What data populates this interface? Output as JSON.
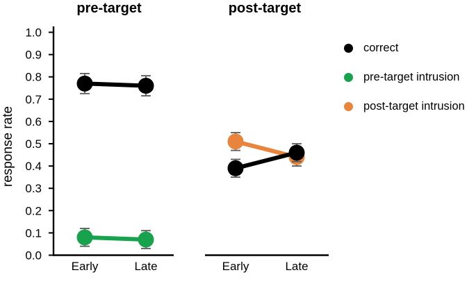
{
  "chart_data": {
    "type": "line",
    "title": "",
    "ylabel": "response rate",
    "xlabel": "",
    "ylim": [
      0.0,
      1.0
    ],
    "yticks": [
      "0.0",
      "0.1",
      "0.2",
      "0.3",
      "0.4",
      "0.5",
      "0.6",
      "0.7",
      "0.8",
      "0.9",
      "1.0"
    ],
    "ytick_values": [
      0.0,
      0.1,
      0.2,
      0.3,
      0.4,
      0.5,
      0.6,
      0.7,
      0.8,
      0.9,
      1.0
    ],
    "categories": [
      "Early",
      "Late"
    ],
    "grid": "off",
    "legend_position": "right",
    "error_bar_color": "#595959",
    "panels": [
      {
        "title": "pre-target",
        "series": [
          {
            "name": "pre-target intrusion",
            "color": "#18a24d",
            "values": [
              0.08,
              0.07
            ],
            "errors": [
              0.04,
              0.04
            ]
          },
          {
            "name": "correct",
            "color": "#000000",
            "values": [
              0.77,
              0.76
            ],
            "errors": [
              0.045,
              0.045
            ]
          }
        ]
      },
      {
        "title": "post-target",
        "series": [
          {
            "name": "post-target intrusion",
            "color": "#e8843c",
            "values": [
              0.51,
              0.44
            ],
            "errors": [
              0.04,
              0.04
            ]
          },
          {
            "name": "correct",
            "color": "#000000",
            "values": [
              0.39,
              0.46
            ],
            "errors": [
              0.04,
              0.04
            ]
          }
        ]
      }
    ],
    "legend": [
      {
        "label": "correct",
        "color": "#000000"
      },
      {
        "label": "pre-target intrusion",
        "color": "#18a24d"
      },
      {
        "label": "post-target intrusion",
        "color": "#e8843c"
      }
    ]
  }
}
